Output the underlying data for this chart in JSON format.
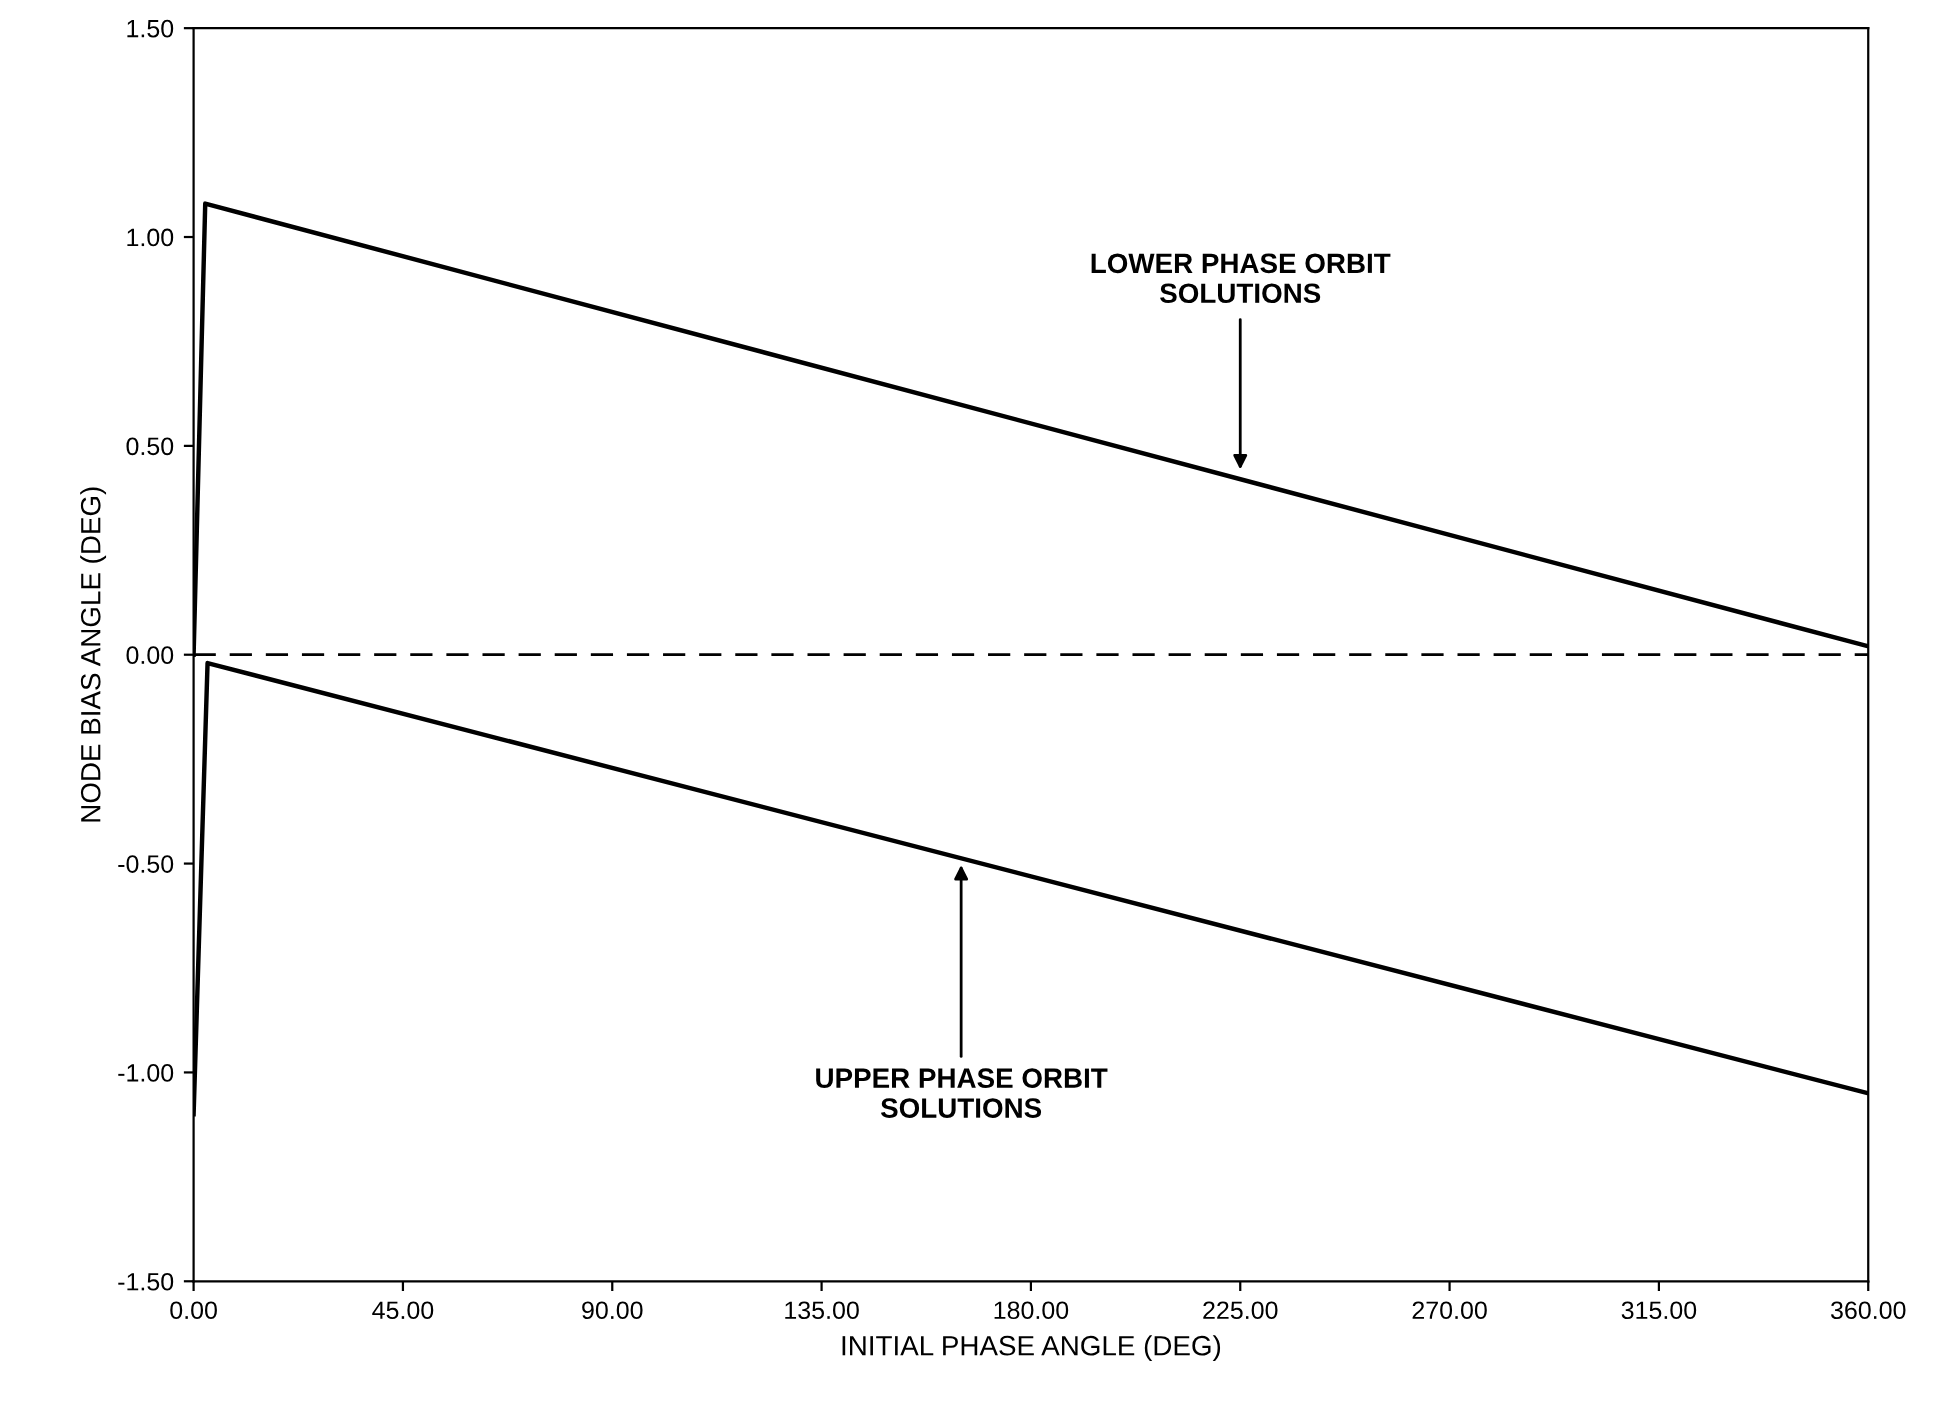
{
  "chart_data": {
    "type": "line",
    "xlabel": "INITIAL PHASE ANGLE (DEG)",
    "ylabel": "NODE BIAS ANGLE (DEG)",
    "series": [
      {
        "color": "#000000",
        "x": [
          0,
          2.5,
          360
        ],
        "values": [
          0.0,
          1.08,
          0.02
        ]
      },
      {
        "color": "#000000",
        "x": [
          0,
          3,
          360
        ],
        "values": [
          -1.1,
          -0.02,
          -1.05
        ]
      }
    ],
    "xlim": [
      0,
      360
    ],
    "xticks": [
      {
        "value": 0,
        "label": "0.00"
      },
      {
        "value": 45,
        "label": "45.00"
      },
      {
        "value": 90,
        "label": "90.00"
      },
      {
        "value": 135,
        "label": "135.00"
      },
      {
        "value": 180,
        "label": "180.00"
      },
      {
        "value": 225,
        "label": "225.00"
      },
      {
        "value": 270,
        "label": "270.00"
      },
      {
        "value": 315,
        "label": "315.00"
      },
      {
        "value": 360,
        "label": "360.00"
      }
    ],
    "ylim": [
      -1.5,
      1.5
    ],
    "yticks": [
      {
        "value": -1.5,
        "label": "-1.50"
      },
      {
        "value": -1.0,
        "label": "-1.00"
      },
      {
        "value": -0.5,
        "label": "-0.50"
      },
      {
        "value": 0,
        "label": "0.00"
      },
      {
        "value": 0.5,
        "label": "0.50"
      },
      {
        "value": 1.0,
        "label": "1.00"
      },
      {
        "value": 1.5,
        "label": "1.50"
      }
    ],
    "ref_lines": [
      {
        "axis": "y",
        "value": 0,
        "color": "#000000",
        "line_style": "dashed"
      }
    ],
    "annotations": [
      {
        "text": "LOWER PHASE ORBIT\nSOLUTIONS",
        "x": 225,
        "y": 0.43
      },
      {
        "text": "UPPER PHASE ORBIT\nSOLUTIONS",
        "x": 165,
        "y": -0.49
      }
    ],
    "marker": "none",
    "line_style": "solid"
  }
}
